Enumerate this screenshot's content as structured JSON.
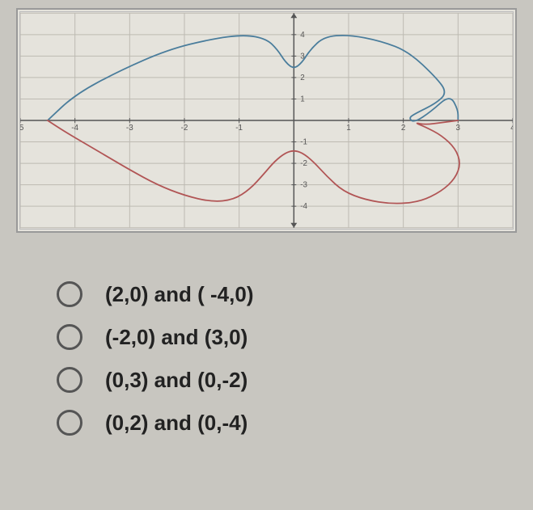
{
  "graph": {
    "xmin": -5,
    "xmax": 4,
    "ymin": -5,
    "ymax": 5,
    "grid_color": "#bdbab2",
    "axis_color": "#555555",
    "tick_fontsize": 10,
    "tick_color": "#555555",
    "background_color": "#e5e3dc",
    "xticks": [
      -5,
      -4,
      -3,
      -2,
      -1,
      0,
      1,
      2,
      3,
      4
    ],
    "yticks": [
      -5,
      -4,
      -3,
      -2,
      -1,
      0,
      1,
      2,
      3,
      4,
      5
    ],
    "curve_blue": {
      "color": "#4a7d9c",
      "width": 1.8,
      "points": [
        [
          -4.5,
          0
        ],
        [
          -4.0,
          1.2
        ],
        [
          -3.2,
          2.3
        ],
        [
          -2.3,
          3.3
        ],
        [
          -1.5,
          3.8
        ],
        [
          -0.9,
          4.0
        ],
        [
          -0.5,
          3.8
        ],
        [
          -0.3,
          3.3
        ],
        [
          -0.15,
          2.7
        ],
        [
          0,
          2.4
        ],
        [
          0.15,
          2.7
        ],
        [
          0.3,
          3.3
        ],
        [
          0.55,
          3.9
        ],
        [
          1.0,
          4.0
        ],
        [
          1.6,
          3.7
        ],
        [
          2.1,
          3.2
        ],
        [
          2.6,
          2.0
        ],
        [
          2.8,
          1.3
        ],
        [
          2.6,
          0.8
        ],
        [
          2.2,
          0.3
        ],
        [
          2.1,
          0.1
        ],
        [
          2.2,
          -0.1
        ],
        [
          2.5,
          0.4
        ],
        [
          2.85,
          1.2
        ],
        [
          3.0,
          0.5
        ],
        [
          3.0,
          0
        ]
      ]
    },
    "curve_red": {
      "color": "#b15555",
      "width": 1.8,
      "points": [
        [
          -4.5,
          0
        ],
        [
          -4.2,
          -0.5
        ],
        [
          -3.8,
          -1.1
        ],
        [
          -3.4,
          -1.7
        ],
        [
          -3.0,
          -2.3
        ],
        [
          -2.5,
          -3.0
        ],
        [
          -2.0,
          -3.5
        ],
        [
          -1.5,
          -3.8
        ],
        [
          -1.1,
          -3.7
        ],
        [
          -0.8,
          -3.2
        ],
        [
          -0.55,
          -2.5
        ],
        [
          -0.35,
          -1.9
        ],
        [
          -0.15,
          -1.5
        ],
        [
          0,
          -1.4
        ],
        [
          0.15,
          -1.5
        ],
        [
          0.35,
          -1.9
        ],
        [
          0.6,
          -2.6
        ],
        [
          0.9,
          -3.3
        ],
        [
          1.3,
          -3.7
        ],
        [
          1.8,
          -3.9
        ],
        [
          2.3,
          -3.8
        ],
        [
          2.7,
          -3.3
        ],
        [
          2.95,
          -2.7
        ],
        [
          3.05,
          -2.0
        ],
        [
          2.95,
          -1.3
        ],
        [
          2.7,
          -0.7
        ],
        [
          2.4,
          -0.3
        ],
        [
          2.2,
          -0.1
        ],
        [
          2.4,
          -0.2
        ],
        [
          2.7,
          -0.1
        ],
        [
          3.0,
          0
        ]
      ]
    }
  },
  "options": [
    {
      "label": "(2,0) and ( -4,0)"
    },
    {
      "label": "(-2,0) and (3,0)"
    },
    {
      "label": "(0,3) and (0,-2)"
    },
    {
      "label": "(0,2) and (0,-4)"
    }
  ]
}
